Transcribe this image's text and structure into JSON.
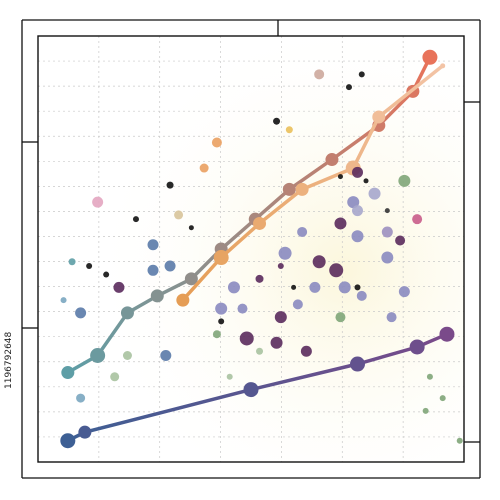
{
  "credit_text": "1196792648",
  "colors": {
    "background": "#ffffff",
    "frame": "#111111",
    "grid": "#c9c9c9",
    "warm_glow": "#fbf6de"
  },
  "chart_data": {
    "type": "scatter",
    "title": "",
    "xlabel": "",
    "ylabel": "",
    "xlim": [
      0,
      100
    ],
    "ylim": [
      0,
      100
    ],
    "grid": true,
    "lines": [
      {
        "gradient": [
          "#5e9ea6",
          "#e8735a"
        ],
        "x": [
          7,
          14,
          21,
          28,
          36,
          43,
          51,
          59,
          69,
          80,
          88,
          92
        ],
        "y": [
          21,
          25,
          35,
          39,
          43,
          50,
          57,
          64,
          71,
          79,
          87,
          95
        ],
        "size": [
          5,
          6,
          5,
          5,
          5,
          5,
          5,
          5,
          5,
          5,
          5,
          6
        ]
      },
      {
        "gradient": [
          "#e59d55",
          "#f3c4a6"
        ],
        "x": [
          34,
          43,
          52,
          62,
          74,
          80,
          95
        ],
        "y": [
          38,
          48,
          56,
          64,
          69,
          81,
          93
        ],
        "size": [
          5,
          6,
          5,
          5,
          6,
          5,
          1
        ]
      },
      {
        "gradient": [
          "#3d5f94",
          "#7a4a8a"
        ],
        "x": [
          7,
          11,
          50,
          75,
          89,
          96
        ],
        "y": [
          5,
          7,
          17,
          23,
          27,
          30
        ],
        "size": [
          6,
          5,
          6,
          6,
          6,
          6
        ]
      }
    ],
    "points": [
      {
        "x": 66,
        "y": 91,
        "c": "#cda89c",
        "r": 4
      },
      {
        "x": 76,
        "y": 91,
        "c": "#111111",
        "r": 2
      },
      {
        "x": 73,
        "y": 88,
        "c": "#111111",
        "r": 2
      },
      {
        "x": 56,
        "y": 80,
        "c": "#111111",
        "r": 2.5
      },
      {
        "x": 59,
        "y": 78,
        "c": "#eac05a",
        "r": 2.5
      },
      {
        "x": 42,
        "y": 75,
        "c": "#eaa060",
        "r": 4
      },
      {
        "x": 39,
        "y": 69,
        "c": "#eaa060",
        "r": 3.5
      },
      {
        "x": 31,
        "y": 65,
        "c": "#111111",
        "r": 2.5
      },
      {
        "x": 75,
        "y": 68,
        "c": "#5a2a5c",
        "r": 4.5
      },
      {
        "x": 71,
        "y": 67,
        "c": "#111111",
        "r": 1.5
      },
      {
        "x": 77,
        "y": 66,
        "c": "#111111",
        "r": 1.5
      },
      {
        "x": 86,
        "y": 66,
        "c": "#7fa578",
        "r": 5
      },
      {
        "x": 79,
        "y": 63,
        "c": "#a6a6cc",
        "r": 5
      },
      {
        "x": 74,
        "y": 61,
        "c": "#8a8ac0",
        "r": 5
      },
      {
        "x": 82,
        "y": 59,
        "c": "#333333",
        "r": 1.5
      },
      {
        "x": 89,
        "y": 57,
        "c": "#c95c8a",
        "r": 4
      },
      {
        "x": 14,
        "y": 61,
        "c": "#e3a5c0",
        "r": 4.5
      },
      {
        "x": 33,
        "y": 58,
        "c": "#d8c49a",
        "r": 3.5
      },
      {
        "x": 36,
        "y": 55,
        "c": "#111111",
        "r": 1.5
      },
      {
        "x": 23,
        "y": 57,
        "c": "#111111",
        "r": 2
      },
      {
        "x": 71,
        "y": 56,
        "c": "#5a2a5c",
        "r": 5
      },
      {
        "x": 75,
        "y": 59,
        "c": "#a6a6cc",
        "r": 4.5
      },
      {
        "x": 62,
        "y": 54,
        "c": "#8a8ac0",
        "r": 4
      },
      {
        "x": 75,
        "y": 53,
        "c": "#8a8ac0",
        "r": 5
      },
      {
        "x": 82,
        "y": 54,
        "c": "#9c8fc0",
        "r": 4.5
      },
      {
        "x": 85,
        "y": 52,
        "c": "#5a2a5c",
        "r": 4
      },
      {
        "x": 27,
        "y": 51,
        "c": "#5a7aa8",
        "r": 4.5
      },
      {
        "x": 58,
        "y": 49,
        "c": "#8a8ac0",
        "r": 5.5
      },
      {
        "x": 66,
        "y": 47,
        "c": "#5a2a5c",
        "r": 5.5
      },
      {
        "x": 70,
        "y": 45,
        "c": "#5a2a5c",
        "r": 6
      },
      {
        "x": 82,
        "y": 48,
        "c": "#8a8ac0",
        "r": 5
      },
      {
        "x": 8,
        "y": 47,
        "c": "#5e9ea6",
        "r": 2.5
      },
      {
        "x": 12,
        "y": 46,
        "c": "#111111",
        "r": 2
      },
      {
        "x": 31,
        "y": 46,
        "c": "#5a7aa8",
        "r": 4.5
      },
      {
        "x": 27,
        "y": 45,
        "c": "#5a7aa8",
        "r": 4.5
      },
      {
        "x": 57,
        "y": 46,
        "c": "#5a2a5c",
        "r": 2
      },
      {
        "x": 60,
        "y": 41,
        "c": "#111111",
        "r": 1.5
      },
      {
        "x": 52,
        "y": 43,
        "c": "#5a2a5c",
        "r": 3
      },
      {
        "x": 16,
        "y": 44,
        "c": "#111111",
        "r": 2
      },
      {
        "x": 19,
        "y": 41,
        "c": "#5a2a5c",
        "r": 4.5
      },
      {
        "x": 46,
        "y": 41,
        "c": "#8a8ac0",
        "r": 5
      },
      {
        "x": 65,
        "y": 41,
        "c": "#8a8ac0",
        "r": 4.5
      },
      {
        "x": 72,
        "y": 41,
        "c": "#8a8ac0",
        "r": 5
      },
      {
        "x": 75,
        "y": 41,
        "c": "#111111",
        "r": 2
      },
      {
        "x": 76,
        "y": 39,
        "c": "#8a8ac0",
        "r": 4
      },
      {
        "x": 86,
        "y": 40,
        "c": "#8a8ac0",
        "r": 4.5
      },
      {
        "x": 6,
        "y": 38,
        "c": "#7aa6c0",
        "r": 2
      },
      {
        "x": 10,
        "y": 35,
        "c": "#5a7aa8",
        "r": 4.5
      },
      {
        "x": 43,
        "y": 36,
        "c": "#8a8ac0",
        "r": 5
      },
      {
        "x": 48,
        "y": 36,
        "c": "#8a8ac0",
        "r": 4
      },
      {
        "x": 43,
        "y": 33,
        "c": "#111111",
        "r": 2
      },
      {
        "x": 57,
        "y": 34,
        "c": "#5a2a5c",
        "r": 5
      },
      {
        "x": 61,
        "y": 37,
        "c": "#8a8ac0",
        "r": 4
      },
      {
        "x": 71,
        "y": 34,
        "c": "#7fa578",
        "r": 4
      },
      {
        "x": 83,
        "y": 34,
        "c": "#8a8ac0",
        "r": 4
      },
      {
        "x": 42,
        "y": 30,
        "c": "#7fa578",
        "r": 3
      },
      {
        "x": 49,
        "y": 29,
        "c": "#5a2a5c",
        "r": 6
      },
      {
        "x": 56,
        "y": 28,
        "c": "#5a2a5c",
        "r": 5
      },
      {
        "x": 63,
        "y": 26,
        "c": "#5a2a5c",
        "r": 4.5
      },
      {
        "x": 21,
        "y": 25,
        "c": "#a8c2a0",
        "r": 3.5
      },
      {
        "x": 30,
        "y": 25,
        "c": "#5a7aa8",
        "r": 4.5
      },
      {
        "x": 18,
        "y": 20,
        "c": "#a8c2a0",
        "r": 3.5
      },
      {
        "x": 52,
        "y": 26,
        "c": "#a8c2a0",
        "r": 2.5
      },
      {
        "x": 45,
        "y": 20,
        "c": "#a8c2a0",
        "r": 2
      },
      {
        "x": 10,
        "y": 15,
        "c": "#7aa6c0",
        "r": 3.5
      },
      {
        "x": 92,
        "y": 20,
        "c": "#7fa578",
        "r": 2
      },
      {
        "x": 95,
        "y": 15,
        "c": "#7fa578",
        "r": 2
      },
      {
        "x": 91,
        "y": 12,
        "c": "#7fa578",
        "r": 2
      },
      {
        "x": 99,
        "y": 5,
        "c": "#7fa578",
        "r": 2
      }
    ]
  }
}
